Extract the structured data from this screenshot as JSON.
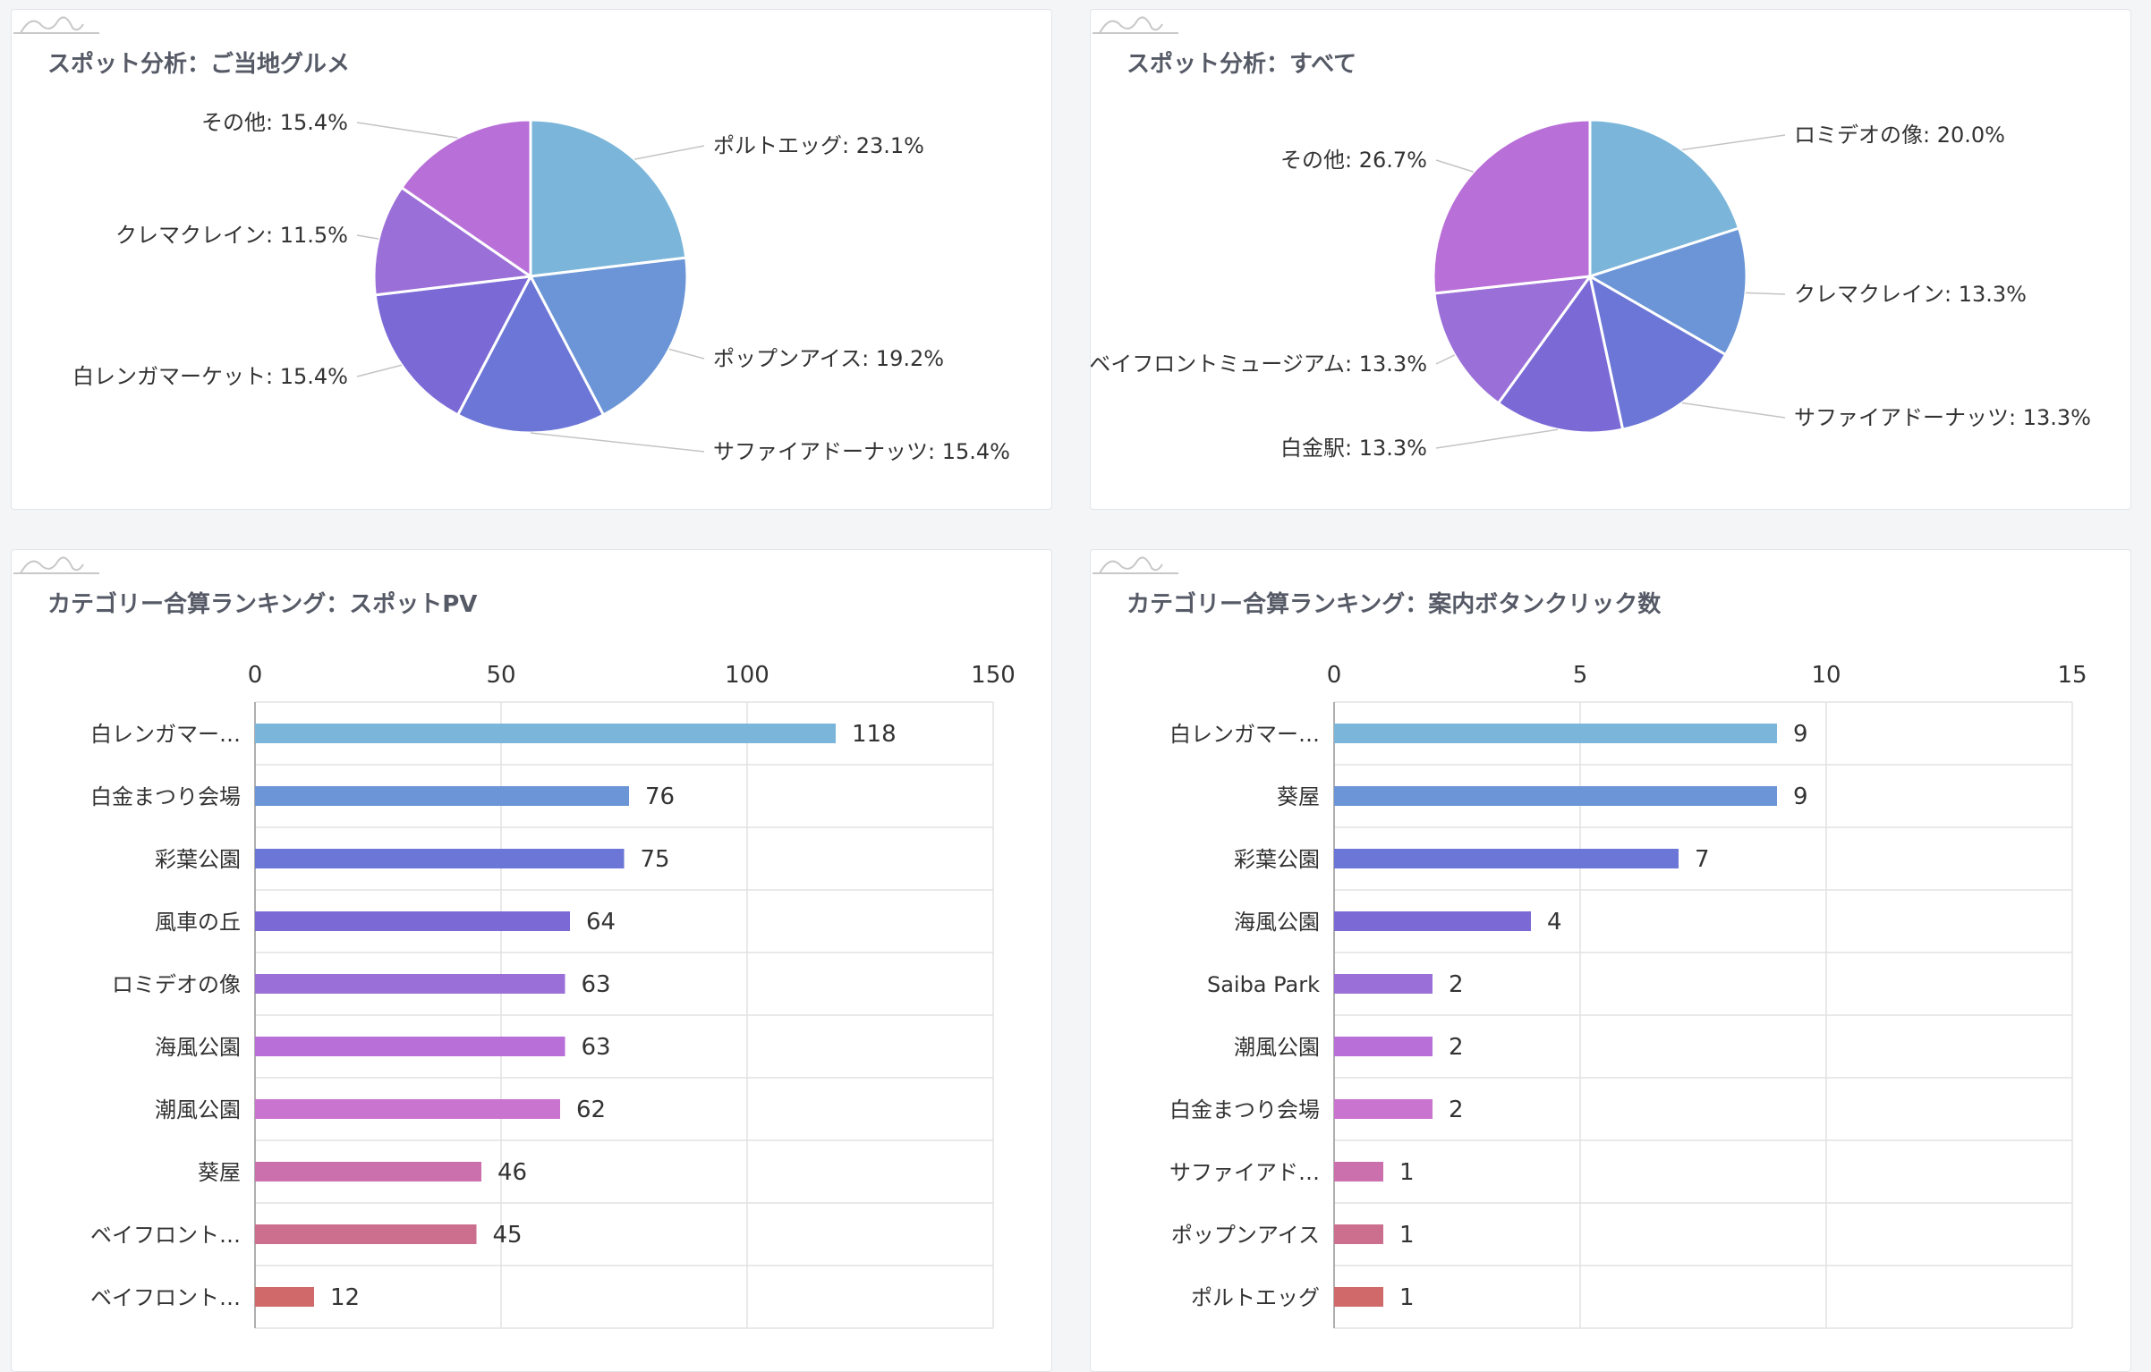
{
  "palette": [
    "#7bb6da",
    "#6b95d6",
    "#6b76d6",
    "#7b6ad6",
    "#9a6fd8",
    "#b96fd8",
    "#c974cf",
    "#cc70ad",
    "#cc6f8f",
    "#d06a6a"
  ],
  "watermark_icon": "chart-logo-icon",
  "panels": [
    {
      "title": "スポット分析：ご当地グルメ",
      "chart_data": {
        "type": "pie",
        "slices": [
          {
            "label": "ポルトエッグ: 23.1%",
            "value": 23.1
          },
          {
            "label": "ポップンアイス: 19.2%",
            "value": 19.2
          },
          {
            "label": "サファイアドーナッツ: 15.4%",
            "value": 15.4
          },
          {
            "label": "白レンガマーケット: 15.4%",
            "value": 15.4
          },
          {
            "label": "クレマクレイン: 11.5%",
            "value": 11.5
          },
          {
            "label": "その他: 15.4%",
            "value": 15.4
          }
        ]
      }
    },
    {
      "title": "スポット分析：すべて",
      "chart_data": {
        "type": "pie",
        "slices": [
          {
            "label": "ロミデオの像: 20.0%",
            "value": 20.0
          },
          {
            "label": "クレマクレイン: 13.3%",
            "value": 13.3
          },
          {
            "label": "サファイアドーナッツ: 13.3%",
            "value": 13.3
          },
          {
            "label": "白金駅: 13.3%",
            "value": 13.3
          },
          {
            "label": "ベイフロントミュージアム: 13.3%",
            "value": 13.3
          },
          {
            "label": "その他: 26.7%",
            "value": 26.7
          }
        ]
      }
    },
    {
      "title": "カテゴリー合算ランキング：スポットPV",
      "chart_data": {
        "type": "bar",
        "orientation": "horizontal",
        "categories": [
          "白レンガマー…",
          "白金まつり会場",
          "彩葉公園",
          "風車の丘",
          "ロミデオの像",
          "海風公園",
          "潮風公園",
          "葵屋",
          "ベイフロント…",
          "ベイフロント…"
        ],
        "values": [
          118,
          76,
          75,
          64,
          63,
          63,
          62,
          46,
          45,
          12
        ],
        "xlim": [
          0,
          150
        ],
        "xticks": [
          0,
          50,
          100,
          150
        ],
        "grid": true
      }
    },
    {
      "title": "カテゴリー合算ランキング：案内ボタンクリック数",
      "chart_data": {
        "type": "bar",
        "orientation": "horizontal",
        "categories": [
          "白レンガマー…",
          "葵屋",
          "彩葉公園",
          "海風公園",
          "Saiba Park",
          "潮風公園",
          "白金まつり会場",
          "サファイアド…",
          "ポップンアイス",
          "ポルトエッグ"
        ],
        "values": [
          9,
          9,
          7,
          4,
          2,
          2,
          2,
          1,
          1,
          1
        ],
        "xlim": [
          0,
          15
        ],
        "xticks": [
          0,
          5,
          10,
          15
        ],
        "grid": true
      }
    }
  ]
}
